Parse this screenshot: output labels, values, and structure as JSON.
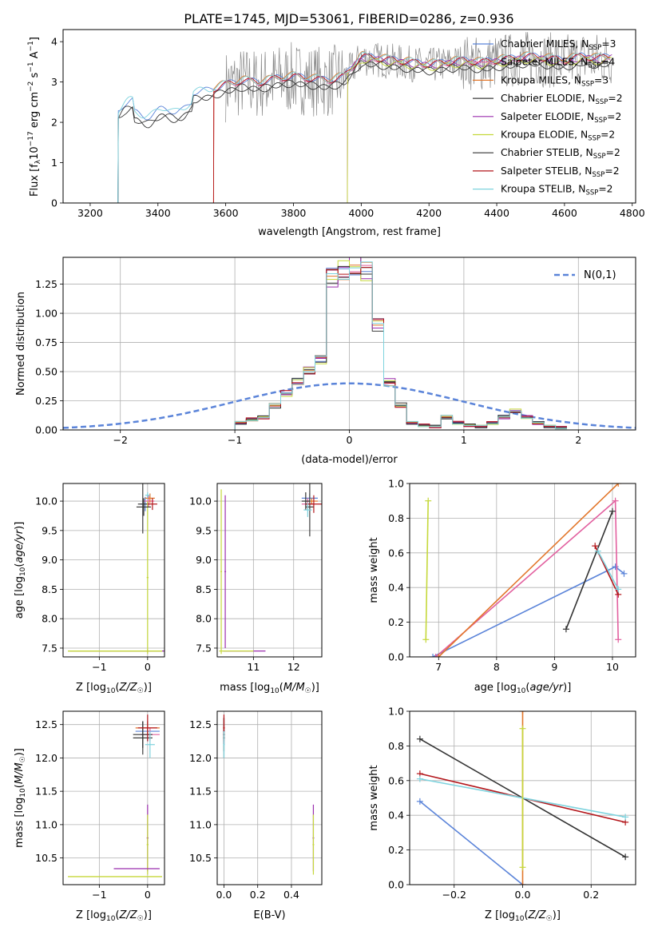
{
  "title": "PLATE=1745, MJD=53061, FIBERID=0286, z=0.936",
  "colors": {
    "chabrier_miles": "#5b84d9",
    "salpeter_miles": "#e2609f",
    "kroupa_miles": "#e2762a",
    "chabrier_elodie": "#3e3e3e",
    "salpeter_elodie": "#9b2fae",
    "kroupa_elodie": "#c5d83a",
    "chabrier_stelib": "#333333",
    "salpeter_stelib": "#b3161b",
    "kroupa_stelib": "#7ed3de",
    "gaussian": "#5b84d9"
  },
  "chart_data": [
    {
      "id": "spectrum",
      "type": "line",
      "title": "PLATE=1745, MJD=53061, FIBERID=0286, z=0.936",
      "xlabel": "wavelength [Angstrom, rest frame]",
      "ylabel": "Flux [f_λ 10^-17 erg cm^-2 s^-1 A^-1]",
      "xlim": [
        3120,
        4810
      ],
      "ylim": [
        0,
        4.3
      ],
      "xticks": [
        3200,
        3400,
        3600,
        3800,
        4000,
        4200,
        4400,
        4600,
        4800
      ],
      "yticks": [
        0,
        1,
        2,
        3,
        4
      ],
      "legend": "right, inside",
      "legend_entries": [
        {
          "key": "chabrier_miles",
          "label": "Chabrier MILES, N",
          "sub": "SSP",
          "tail": "=3"
        },
        {
          "key": "salpeter_miles",
          "label": "Salpeter MILES, N",
          "sub": "SSP",
          "tail": "=4"
        },
        {
          "key": "kroupa_miles",
          "label": "Kroupa MILES, N",
          "sub": "SSP",
          "tail": "=3"
        },
        {
          "key": "chabrier_elodie",
          "label": "Chabrier ELODIE, N",
          "sub": "SSP",
          "tail": "=2"
        },
        {
          "key": "salpeter_elodie",
          "label": "Salpeter ELODIE, N",
          "sub": "SSP",
          "tail": "=2"
        },
        {
          "key": "kroupa_elodie",
          "label": "Kroupa ELODIE, N",
          "sub": "SSP",
          "tail": "=2"
        },
        {
          "key": "chabrier_stelib",
          "label": "Chabrier STELIB, N",
          "sub": "SSP",
          "tail": "=2"
        },
        {
          "key": "salpeter_stelib",
          "label": "Salpeter STELIB, N",
          "sub": "SSP",
          "tail": "=2"
        },
        {
          "key": "kroupa_stelib",
          "label": "Kroupa STELIB, N",
          "sub": "SSP",
          "tail": "=2"
        }
      ],
      "continuum": {
        "x": [
          3200,
          3270,
          3282,
          3300,
          3350,
          3400,
          3450,
          3500,
          3550,
          3600,
          3650,
          3700,
          3750,
          3800,
          3850,
          3900,
          3950,
          4000,
          4050,
          4100,
          4150,
          4200,
          4250,
          4300,
          4350,
          4400,
          4450,
          4500,
          4550,
          4600,
          4650,
          4700,
          4740
        ],
        "y": [
          0,
          0,
          2.3,
          2.4,
          2.45,
          2.5,
          2.55,
          2.7,
          2.75,
          2.9,
          3.0,
          2.95,
          3.05,
          3.1,
          3.05,
          3.0,
          3.1,
          3.6,
          3.55,
          3.5,
          3.45,
          3.4,
          3.45,
          3.5,
          3.45,
          3.5,
          3.55,
          3.6,
          3.55,
          3.5,
          3.6,
          3.55,
          3.6
        ]
      },
      "data_spectrum_range": [
        3600,
        4740
      ]
    },
    {
      "id": "residual_hist",
      "type": "step",
      "xlabel": "(data-model)/error",
      "ylabel": "Normed distribution",
      "xlim": [
        -2.5,
        2.5
      ],
      "ylim": [
        0,
        1.48
      ],
      "xticks": [
        -2,
        -1,
        0,
        1,
        2
      ],
      "yticks": [
        0.0,
        0.25,
        0.5,
        0.75,
        1.0,
        1.25
      ],
      "legend_label": "N(0,1)",
      "legend": "top-right",
      "bin_edges": [
        -1.0,
        -0.9,
        -0.8,
        -0.7,
        -0.6,
        -0.5,
        -0.4,
        -0.3,
        -0.2,
        -0.1,
        0.0,
        0.1,
        0.2,
        0.3,
        0.4,
        0.5,
        0.6,
        0.7,
        0.8,
        0.9,
        1.0,
        1.1,
        1.2,
        1.3,
        1.4,
        1.5,
        1.6,
        1.7,
        1.8,
        1.9
      ],
      "values": [
        0.05,
        0.08,
        0.1,
        0.2,
        0.3,
        0.4,
        0.5,
        0.6,
        1.3,
        1.35,
        1.4,
        1.35,
        0.9,
        0.4,
        0.2,
        0.05,
        0.03,
        0.02,
        0.1,
        0.05,
        0.03,
        0.02,
        0.05,
        0.1,
        0.15,
        0.1,
        0.05,
        0.02,
        0.01
      ]
    },
    {
      "id": "age_vs_Z",
      "type": "errorbar",
      "xlabel": "Z [log10(Z/Z☉)]",
      "ylabel": "age [log10(age/yr)]",
      "xlim": [
        -1.75,
        0.35
      ],
      "ylim": [
        7.35,
        10.3
      ],
      "xticks": [
        -1,
        0
      ],
      "yticks": [
        7.5,
        8.0,
        8.5,
        9.0,
        9.5,
        10.0
      ]
    },
    {
      "id": "age_vs_mass",
      "type": "errorbar",
      "xlabel": "mass [log10(M/M☉)]",
      "ylabel": "",
      "xlim": [
        10.1,
        12.7
      ],
      "ylim": [
        7.35,
        10.3
      ],
      "xticks": [
        11,
        12
      ],
      "yticks": [
        7.5,
        8.0,
        8.5,
        9.0,
        9.5,
        10.0
      ]
    },
    {
      "id": "massweight_vs_age",
      "type": "line",
      "xlabel": "age [log10(age/yr)]",
      "ylabel": "mass weight",
      "xlim": [
        6.5,
        10.4
      ],
      "ylim": [
        0,
        1.0
      ],
      "xticks": [
        7,
        8,
        9,
        10
      ],
      "yticks": [
        0.0,
        0.2,
        0.4,
        0.6,
        0.8,
        1.0
      ],
      "series": [
        {
          "key": "chabrier_miles",
          "x": [
            6.9,
            10.05,
            10.2
          ],
          "y": [
            0.0,
            0.52,
            0.48
          ]
        },
        {
          "key": "salpeter_miles",
          "x": [
            6.95,
            10.05,
            10.1
          ],
          "y": [
            0.0,
            0.9,
            0.1
          ]
        },
        {
          "key": "kroupa_miles",
          "x": [
            7.0,
            10.1
          ],
          "y": [
            0.0,
            1.0
          ]
        },
        {
          "key": "chabrier_stelib",
          "x": [
            9.2,
            10.0
          ],
          "y": [
            0.16,
            0.84
          ]
        },
        {
          "key": "salpeter_stelib",
          "x": [
            9.7,
            10.1
          ],
          "y": [
            0.64,
            0.36
          ]
        },
        {
          "key": "kroupa_stelib",
          "x": [
            9.75,
            10.1
          ],
          "y": [
            0.61,
            0.39
          ]
        },
        {
          "key": "kroupa_elodie",
          "x": [
            6.78,
            6.82
          ],
          "y": [
            0.1,
            0.9
          ]
        }
      ]
    },
    {
      "id": "mass_vs_Z",
      "type": "errorbar",
      "xlabel": "Z [log10(Z/Z☉)]",
      "ylabel": "mass [log10(M/M☉)]",
      "xlim": [
        -1.75,
        0.35
      ],
      "ylim": [
        10.1,
        12.7
      ],
      "xticks": [
        -1,
        0
      ],
      "yticks": [
        10.5,
        11.0,
        11.5,
        12.0,
        12.5
      ]
    },
    {
      "id": "mass_vs_ebv",
      "type": "errorbar",
      "xlabel": "E(B-V)",
      "ylabel": "",
      "xlim": [
        -0.04,
        0.58
      ],
      "ylim": [
        10.1,
        12.7
      ],
      "xticks": [
        0.0,
        0.2,
        0.4
      ],
      "yticks": [
        10.5,
        11.0,
        11.5,
        12.0,
        12.5
      ]
    },
    {
      "id": "massweight_vs_Z",
      "type": "line",
      "xlabel": "Z [log10(Z/Z☉)]",
      "ylabel": "mass weight",
      "xlim": [
        -0.33,
        0.33
      ],
      "ylim": [
        0,
        1.0
      ],
      "xticks": [
        -0.2,
        0.0,
        0.2
      ],
      "yticks": [
        0.0,
        0.2,
        0.4,
        0.6,
        0.8,
        1.0
      ],
      "series": [
        {
          "key": "chabrier_miles",
          "x": [
            -0.3,
            0.0
          ],
          "y": [
            0.48,
            0.0
          ]
        },
        {
          "key": "kroupa_miles",
          "x": [
            0.0,
            0.0
          ],
          "y": [
            0.0,
            1.0
          ]
        },
        {
          "key": "chabrier_stelib",
          "x": [
            -0.3,
            0.3
          ],
          "y": [
            0.84,
            0.16
          ]
        },
        {
          "key": "salpeter_stelib",
          "x": [
            -0.3,
            0.3
          ],
          "y": [
            0.64,
            0.36
          ]
        },
        {
          "key": "kroupa_stelib",
          "x": [
            -0.3,
            0.3
          ],
          "y": [
            0.61,
            0.39
          ]
        },
        {
          "key": "kroupa_elodie",
          "x": [
            0.0,
            0.0
          ],
          "y": [
            0.1,
            0.9
          ]
        }
      ]
    }
  ]
}
